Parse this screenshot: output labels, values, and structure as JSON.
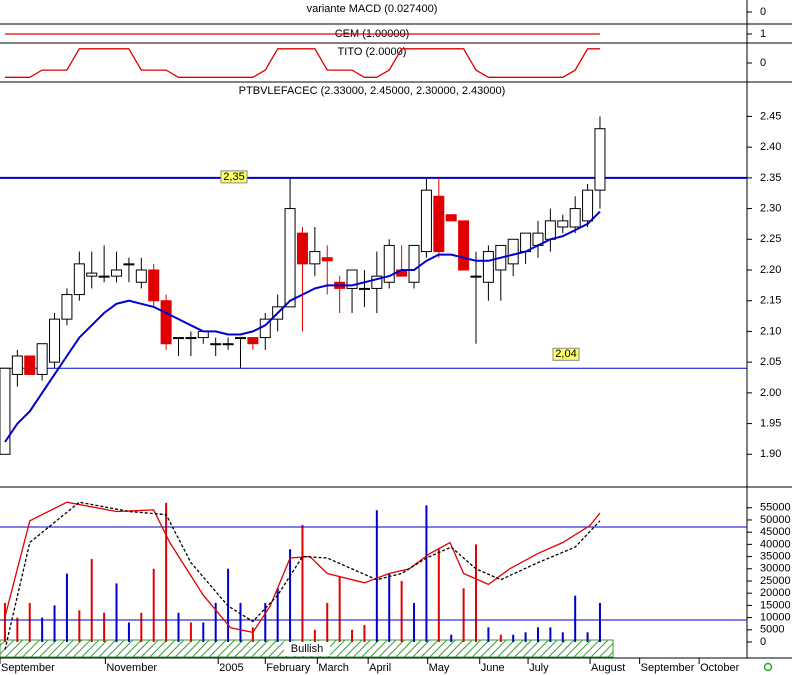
{
  "chart_data": [
    {
      "type": "indicator",
      "title": "variante MACD (0.027400)",
      "ylim": [
        -1,
        1
      ],
      "yticks": [
        0
      ]
    },
    {
      "type": "line",
      "title": "CEM (1.00000)",
      "ylim": [
        0,
        2
      ],
      "yticks": [
        1
      ],
      "x": [
        0,
        48
      ],
      "values": [
        1,
        1
      ],
      "color": "#e00000"
    },
    {
      "type": "line",
      "title": "TITO (2.0000)",
      "ylim": [
        -4,
        4
      ],
      "yticks": [
        0
      ],
      "color": "#e00000",
      "values": [
        -3,
        -3,
        -3,
        -1.5,
        -1.5,
        -1.5,
        3,
        3,
        3,
        3,
        3,
        -1.5,
        -1.5,
        -1.5,
        -3,
        -3,
        -3,
        -3,
        -3,
        -3,
        -3,
        -1.5,
        3,
        3,
        3,
        3,
        -1.5,
        -1.5,
        -1.5,
        -3,
        -3,
        -1.5,
        3,
        3,
        3,
        3,
        3,
        3,
        -1.5,
        -3,
        -3,
        -3,
        -3,
        -3,
        -3,
        -3,
        -1.5,
        3,
        3
      ]
    },
    {
      "type": "candlestick",
      "title": "PTBVLEFACEC (2.33000, 2.45000, 2.30000, 2.43000)",
      "xlim": [
        -0.4,
        59.7
      ],
      "ylim": [
        1.85,
        2.48
      ],
      "yticks": [
        {
          "value": 1.9,
          "label": "1.90"
        },
        {
          "value": 1.95,
          "label": "1.95"
        },
        {
          "value": 2.0,
          "label": "2.00"
        },
        {
          "value": 2.05,
          "label": "2.05"
        },
        {
          "value": 2.1,
          "label": "2.10"
        },
        {
          "value": 2.15,
          "label": "2.15"
        },
        {
          "value": 2.2,
          "label": "2.20"
        },
        {
          "value": 2.25,
          "label": "2.25"
        },
        {
          "value": 2.3,
          "label": "2.30"
        },
        {
          "value": 2.35,
          "label": "2.35"
        },
        {
          "value": 2.4,
          "label": "2.40"
        },
        {
          "value": 2.45,
          "label": "2.45"
        }
      ],
      "up_color": "#ffffff",
      "down_color": "#e00000",
      "open": [
        1.9,
        2.03,
        2.06,
        2.03,
        2.05,
        2.12,
        2.16,
        2.19,
        2.19,
        2.19,
        2.21,
        2.18,
        2.2,
        2.15,
        2.09,
        2.09,
        2.09,
        2.08,
        2.08,
        2.09,
        2.09,
        2.09,
        2.12,
        2.14,
        2.26,
        2.21,
        2.22,
        2.18,
        2.17,
        2.17,
        2.17,
        2.18,
        2.2,
        2.18,
        2.23,
        2.32,
        2.29,
        2.28,
        2.19,
        2.18,
        2.2,
        2.21,
        2.23,
        2.24,
        2.25,
        2.27,
        2.27,
        2.28,
        2.33
      ],
      "high": [
        2.04,
        2.07,
        2.06,
        2.08,
        2.13,
        2.17,
        2.23,
        2.23,
        2.24,
        2.23,
        2.22,
        2.22,
        2.21,
        2.16,
        2.09,
        2.1,
        2.1,
        2.09,
        2.09,
        2.09,
        2.09,
        2.13,
        2.16,
        2.35,
        2.27,
        2.27,
        2.24,
        2.19,
        2.2,
        2.2,
        2.23,
        2.25,
        2.24,
        2.24,
        2.35,
        2.35,
        2.29,
        2.28,
        2.23,
        2.24,
        2.24,
        2.25,
        2.26,
        2.28,
        2.3,
        2.29,
        2.32,
        2.34,
        2.45
      ],
      "low": [
        1.9,
        2.01,
        2.03,
        2.02,
        2.04,
        2.11,
        2.15,
        2.17,
        2.18,
        2.18,
        2.18,
        2.17,
        2.14,
        2.07,
        2.06,
        2.06,
        2.08,
        2.06,
        2.07,
        2.04,
        2.07,
        2.07,
        2.1,
        2.14,
        2.1,
        2.19,
        2.16,
        2.13,
        2.13,
        2.14,
        2.13,
        2.17,
        2.19,
        2.17,
        2.22,
        2.22,
        2.28,
        2.2,
        2.08,
        2.15,
        2.15,
        2.19,
        2.21,
        2.22,
        2.23,
        2.26,
        2.26,
        2.27,
        2.3
      ],
      "close": [
        2.04,
        2.06,
        2.03,
        2.08,
        2.12,
        2.16,
        2.21,
        2.195,
        2.19,
        2.2,
        2.21,
        2.2,
        2.15,
        2.08,
        2.09,
        2.09,
        2.1,
        2.08,
        2.08,
        2.09,
        2.08,
        2.12,
        2.14,
        2.3,
        2.21,
        2.23,
        2.215,
        2.17,
        2.2,
        2.17,
        2.19,
        2.24,
        2.19,
        2.24,
        2.33,
        2.23,
        2.28,
        2.2,
        2.19,
        2.23,
        2.24,
        2.25,
        2.26,
        2.26,
        2.28,
        2.28,
        2.3,
        2.33,
        2.43
      ],
      "series": [
        {
          "color": "#0000cc",
          "values": [
            1.92,
            1.95,
            1.97,
            2.0,
            2.03,
            2.06,
            2.09,
            2.11,
            2.13,
            2.145,
            2.15,
            2.145,
            2.14,
            2.13,
            2.12,
            2.11,
            2.1,
            2.1,
            2.095,
            2.095,
            2.1,
            2.11,
            2.13,
            2.15,
            2.16,
            2.17,
            2.175,
            2.175,
            2.175,
            2.18,
            2.185,
            2.19,
            2.2,
            2.2,
            2.215,
            2.225,
            2.225,
            2.22,
            2.215,
            2.215,
            2.22,
            2.225,
            2.23,
            2.24,
            2.25,
            2.255,
            2.265,
            2.275,
            2.295
          ]
        }
      ],
      "hlines": [
        {
          "value": 2.35,
          "label": "2,35",
          "color": "#0000cc"
        },
        {
          "value": 2.04,
          "label": "2,04",
          "color": "#0000cc"
        }
      ]
    },
    {
      "type": "bar",
      "ylim": [
        0,
        59000
      ],
      "yticks": [
        0,
        5000,
        10000,
        15000,
        20000,
        25000,
        30000,
        35000,
        40000,
        45000,
        50000,
        55000
      ],
      "values": [
        16000,
        10000,
        16000,
        10000,
        15000,
        28000,
        13000,
        34000,
        12000,
        24000,
        8000,
        12000,
        30000,
        57000,
        12000,
        8000,
        8000,
        16000,
        30000,
        16000,
        6000,
        16000,
        22000,
        38000,
        48000,
        5000,
        16000,
        27000,
        5000,
        7000,
        54000,
        28000,
        25000,
        16000,
        56000,
        38000,
        3000,
        22000,
        40000,
        6000,
        3000,
        3000,
        4000,
        6000,
        6000,
        4000,
        19000,
        4000,
        16000
      ],
      "colors": [
        "#e00000",
        "#e00000",
        "#e00000",
        "#0000cc",
        "#0000cc",
        "#0000cc",
        "#e00000",
        "#e00000",
        "#e00000",
        "#0000cc",
        "#0000cc",
        "#e00000",
        "#e00000",
        "#e00000",
        "#0000cc",
        "#e00000",
        "#0000cc",
        "#0000cc",
        "#0000cc",
        "#0000cc",
        "#e00000",
        "#0000cc",
        "#0000cc",
        "#0000cc",
        "#e00000",
        "#e00000",
        "#e00000",
        "#e00000",
        "#e00000",
        "#e00000",
        "#0000cc",
        "#0000cc",
        "#e00000",
        "#0000cc",
        "#0000cc",
        "#e00000",
        "#0000cc",
        "#e00000",
        "#e00000",
        "#0000cc",
        "#e00000",
        "#0000cc",
        "#0000cc",
        "#0000cc",
        "#0000cc",
        "#0000cc",
        "#0000cc",
        "#0000cc",
        "#0000cc"
      ],
      "oscillator": {
        "ylim": [
          0,
          100
        ],
        "levels": [
          20,
          80
        ],
        "level_color": "#0000cc",
        "series": [
          {
            "color": "#e00000",
            "dash": false,
            "x": [
              0,
              2,
              5,
              9,
              12,
              13.3,
              16,
              18.2,
              20,
              21.4,
              23,
              24.6,
              26,
              29,
              31,
              32.6,
              34.3,
              35.9,
              37,
              39,
              40.7,
              43,
              45,
              47.2,
              48
            ],
            "values": [
              22,
              84,
              96,
              90,
              91,
              70,
              36,
              15,
              12,
              29,
              60,
              61,
              50,
              44,
              50,
              53,
              63,
              70,
              50,
              43,
              53,
              63,
              70,
              81,
              89
            ]
          },
          {
            "color": "#000000",
            "dash": true,
            "x": [
              0,
              2,
              6,
              10,
              13,
              15,
              18,
              20,
              22,
              24,
              26,
              28,
              30,
              32,
              34,
              36,
              38,
              40,
              43,
              46,
              48
            ],
            "values": [
              1,
              70,
              96,
              90,
              88,
              57,
              29,
              19,
              36,
              61,
              60,
              53,
              46,
              50,
              60,
              67,
              53,
              46,
              57,
              67,
              84
            ]
          }
        ]
      },
      "annotation": "Bullish",
      "xticks": [
        {
          "value": -0.4,
          "label": "September"
        },
        {
          "value": 8.1,
          "label": "November"
        },
        {
          "value": 17.2,
          "label": "2005"
        },
        {
          "value": 21,
          "label": "February"
        },
        {
          "value": 25.2,
          "label": "March"
        },
        {
          "value": 29.3,
          "label": "April"
        },
        {
          "value": 34.1,
          "label": "May"
        },
        {
          "value": 38.3,
          "label": "June"
        },
        {
          "value": 42.2,
          "label": "July"
        },
        {
          "value": 47.2,
          "label": "August"
        },
        {
          "value": 51.2,
          "label": "September"
        },
        {
          "value": 56,
          "label": "October"
        }
      ]
    }
  ]
}
